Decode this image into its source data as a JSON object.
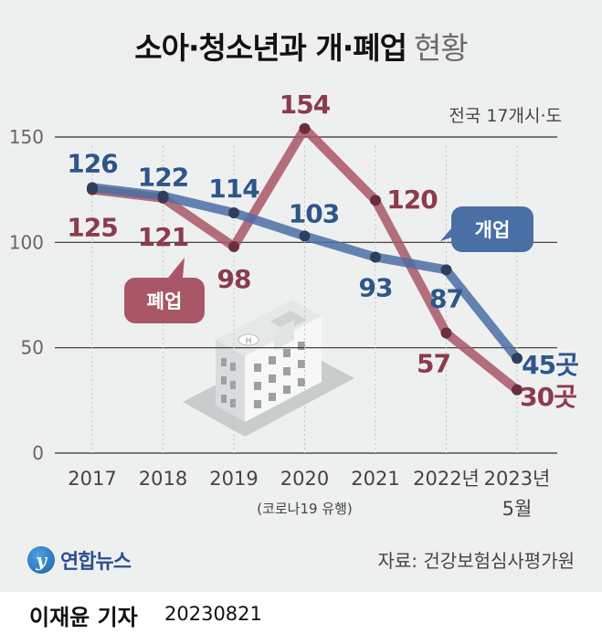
{
  "title": {
    "main": "소아·청소년과 개·폐업",
    "light": "현황"
  },
  "region_note": "전국 17개시·도",
  "source": "자료: 건강보험심사평가원",
  "logo": {
    "mark": "y",
    "text": "연합뉴스"
  },
  "byline": {
    "name": "이재윤 기자",
    "date": "20230821"
  },
  "colors": {
    "open": "#4a6fa5",
    "close": "#a95766",
    "grid": "#c4c6c6",
    "label_open": "#2f5689",
    "label_close": "#8c3b4d"
  },
  "chart_data": {
    "type": "line",
    "categories": [
      "2017",
      "2018",
      "2019",
      "2020",
      "2021",
      "2022년",
      "2023년"
    ],
    "category_sublabels": [
      "",
      "",
      "",
      "(코로나19 유행)",
      "",
      "",
      "5월"
    ],
    "ylim": [
      0,
      150
    ],
    "yticks": [
      0,
      50,
      100,
      150
    ],
    "unit": "곳",
    "series": [
      {
        "name": "개업",
        "values": [
          126,
          122,
          114,
          103,
          93,
          87,
          45
        ],
        "labels": [
          "126",
          "122",
          "114",
          "103",
          "93",
          "87",
          "45곳"
        ]
      },
      {
        "name": "폐업",
        "values": [
          125,
          121,
          98,
          154,
          120,
          57,
          30
        ],
        "labels": [
          "125",
          "121",
          "98",
          "154",
          "120",
          "57",
          "30곳"
        ]
      }
    ]
  }
}
